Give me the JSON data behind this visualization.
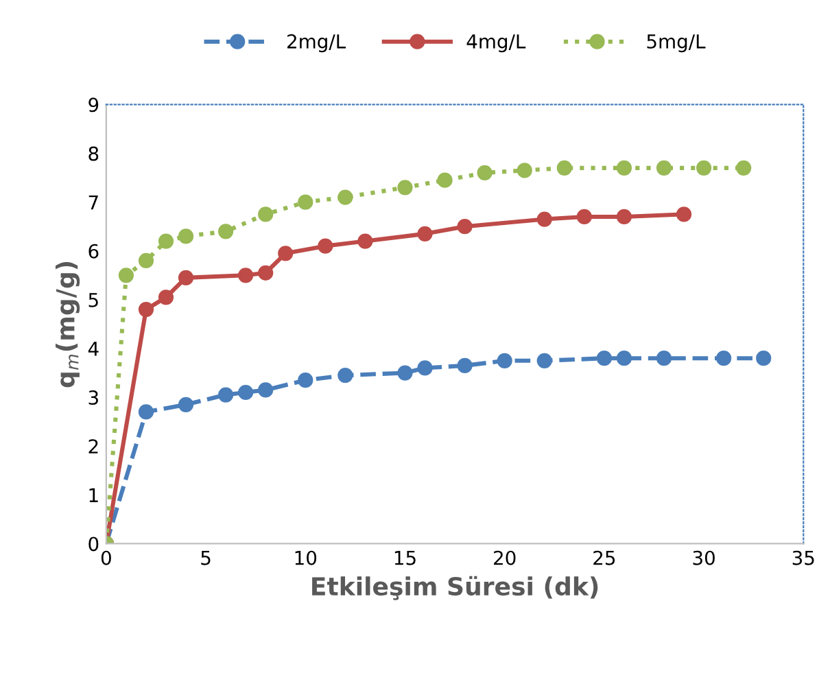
{
  "chart_data": {
    "type": "line",
    "xlabel": "Etkileşim Süresi (dk)",
    "ylabel": "q$_{m}$(mg/g)",
    "xlim": [
      0,
      35
    ],
    "xticks": [
      0,
      5,
      10,
      15,
      20,
      25,
      30,
      35
    ],
    "ylim": [
      0,
      9
    ],
    "yticks": [
      0,
      1,
      2,
      3,
      4,
      5,
      6,
      7,
      8,
      9
    ],
    "grid": false,
    "legend": "top",
    "marker": "circle",
    "series": [
      {
        "name": "2mg/L",
        "color": "#4a7ebb",
        "line_style": "dashed",
        "x": [
          0,
          2,
          4,
          6,
          7,
          8,
          10,
          12,
          15,
          16,
          18,
          20,
          22,
          25,
          26,
          28,
          31,
          33
        ],
        "values": [
          0,
          2.7,
          2.85,
          3.05,
          3.1,
          3.15,
          3.35,
          3.45,
          3.5,
          3.6,
          3.65,
          3.75,
          3.75,
          3.8,
          3.8,
          3.8,
          3.8,
          3.8
        ]
      },
      {
        "name": "4mg/L",
        "color": "#be4b48",
        "line_style": "solid",
        "x": [
          0,
          2,
          3,
          4,
          7,
          8,
          9,
          11,
          13,
          16,
          18,
          22,
          24,
          26,
          29
        ],
        "values": [
          0,
          4.8,
          5.05,
          5.45,
          5.5,
          5.55,
          5.95,
          6.1,
          6.2,
          6.35,
          6.5,
          6.65,
          6.7,
          6.7,
          6.75
        ]
      },
      {
        "name": "5mg/L",
        "color": "#98b954",
        "line_style": "dotted",
        "x": [
          0,
          1,
          2,
          3,
          4,
          6,
          8,
          10,
          12,
          15,
          17,
          19,
          21,
          23,
          26,
          28,
          30,
          32
        ],
        "values": [
          0,
          5.5,
          5.8,
          6.2,
          6.3,
          6.4,
          6.75,
          7.0,
          7.1,
          7.3,
          7.45,
          7.6,
          7.65,
          7.7,
          7.7,
          7.7,
          7.7,
          7.7
        ]
      }
    ]
  }
}
